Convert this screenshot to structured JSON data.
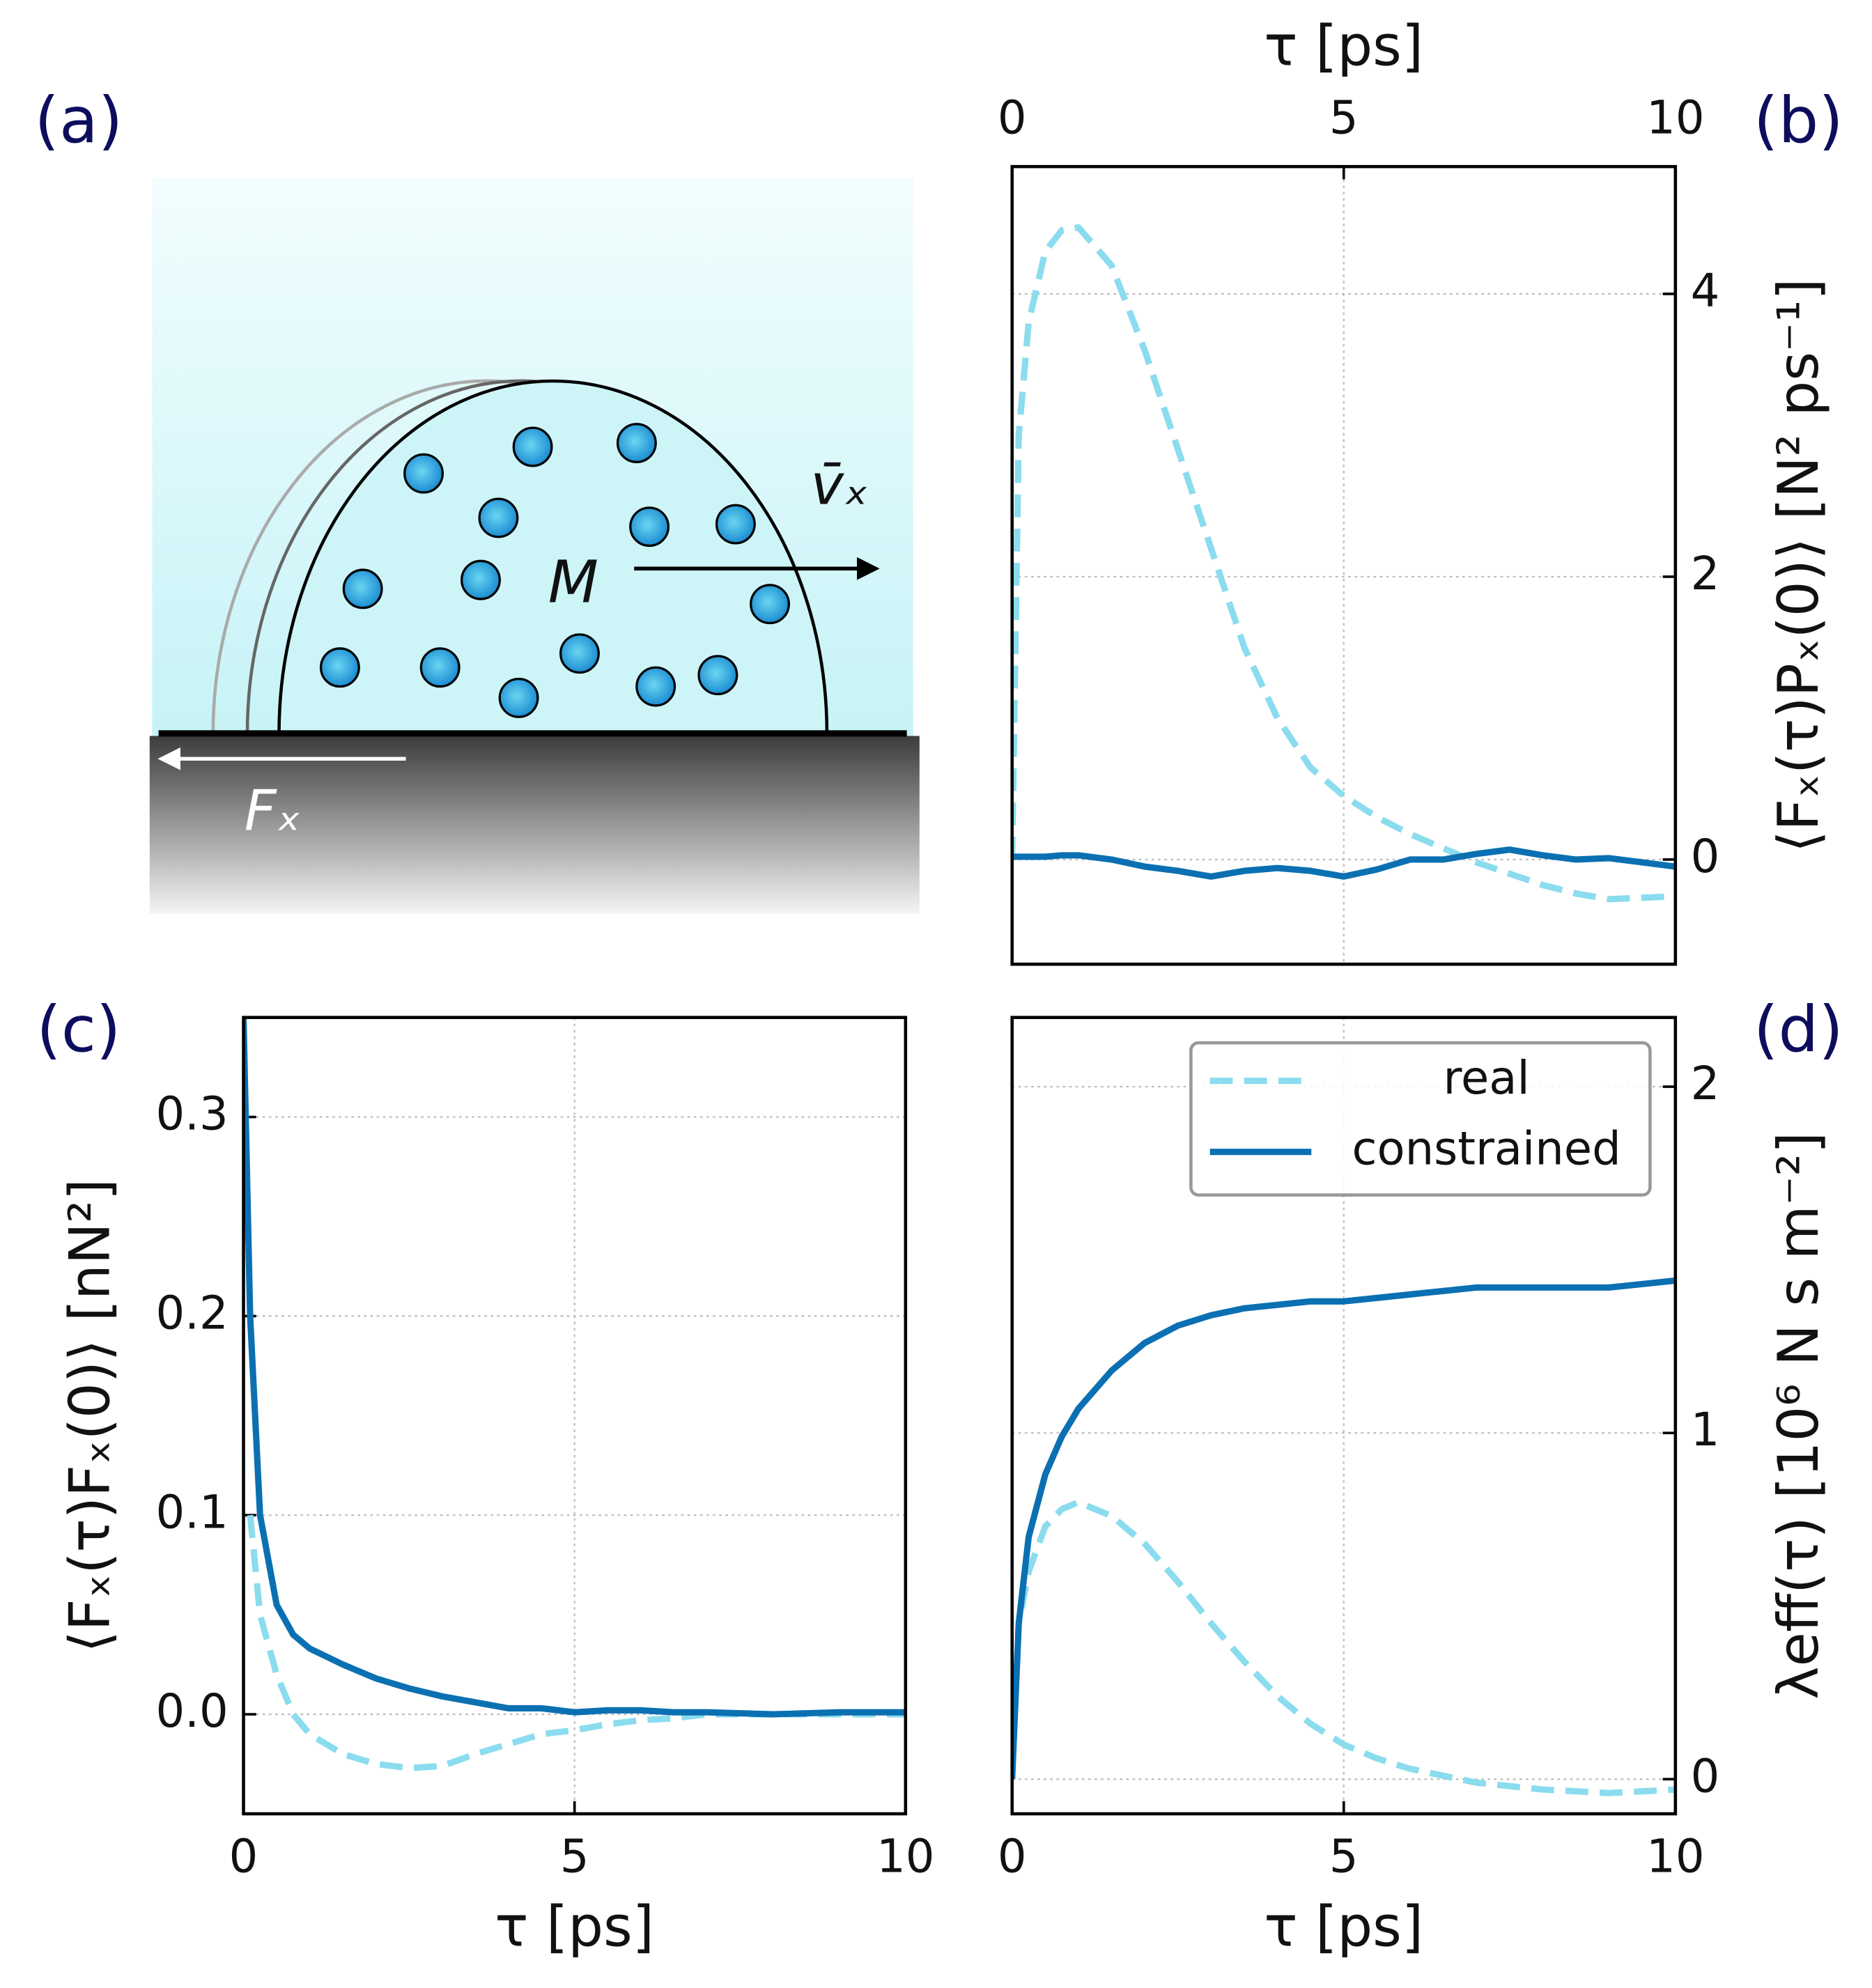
{
  "panel_labels": [
    "(a)",
    "(b)",
    "(c)",
    "(d)"
  ],
  "diagram": {
    "mass": "M",
    "velocity": "v̄ₓ",
    "force": "Fₓ"
  },
  "chart_data": [
    {
      "type": "line",
      "xlabel": "τ [ps]",
      "ylabel": "⟨Fₓ(τ)Pₓ(0)⟩ [N² ps⁻¹]",
      "xaxis_position": "top",
      "yaxis_position": "right",
      "x": [
        0,
        0.1,
        0.25,
        0.5,
        0.75,
        1,
        1.5,
        2,
        2.5,
        3,
        3.5,
        4,
        4.5,
        5,
        5.5,
        6,
        6.5,
        7,
        7.5,
        8,
        8.5,
        9,
        9.5,
        10
      ],
      "series": [
        {
          "color": "#8adcee",
          "style": "dashed",
          "values": [
            0,
            3.0,
            3.8,
            4.3,
            4.45,
            4.47,
            4.2,
            3.6,
            2.9,
            2.2,
            1.5,
            1.0,
            0.65,
            0.45,
            0.3,
            0.18,
            0.08,
            -0.02,
            -0.1,
            -0.18,
            -0.24,
            -0.28,
            -0.27,
            -0.26
          ]
        },
        {
          "color": "#0b70b2",
          "style": "solid",
          "values": [
            0.02,
            0.02,
            0.02,
            0.02,
            0.03,
            0.03,
            0.0,
            -0.05,
            -0.08,
            -0.12,
            -0.08,
            -0.06,
            -0.08,
            -0.12,
            -0.07,
            0.0,
            0.0,
            0.04,
            0.07,
            0.03,
            0.0,
            0.01,
            -0.02,
            -0.05
          ]
        }
      ],
      "xlim": [
        0,
        10
      ],
      "ylim": [
        -0.74,
        4.9
      ],
      "xticks": [
        0,
        5,
        10
      ],
      "yticks": [
        0,
        2,
        4
      ],
      "grid": true
    },
    {
      "type": "line",
      "xlabel": "τ [ps]",
      "ylabel": "⟨Fₓ(τ)Fₓ(0)⟩ [nN²]",
      "xaxis_position": "bottom",
      "yaxis_position": "left",
      "x": [
        0,
        0.1,
        0.25,
        0.5,
        0.75,
        1,
        1.5,
        2,
        2.5,
        3,
        3.5,
        4,
        4.5,
        5,
        5.5,
        6,
        6.5,
        7,
        8,
        9,
        10
      ],
      "series": [
        {
          "color": "#8adcee",
          "style": "dashed",
          "values": [
            null,
            0.1,
            0.05,
            0.02,
            0.0,
            -0.01,
            -0.02,
            -0.025,
            -0.027,
            -0.026,
            -0.02,
            -0.015,
            -0.01,
            -0.008,
            -0.005,
            -0.003,
            -0.002,
            0,
            0,
            0,
            0
          ]
        },
        {
          "color": "#0b70b2",
          "style": "solid",
          "values": [
            0.35,
            0.2,
            0.1,
            0.055,
            0.04,
            0.033,
            0.025,
            0.018,
            0.013,
            0.009,
            0.006,
            0.003,
            0.003,
            0.001,
            0.002,
            0.002,
            0.001,
            0.001,
            0.0,
            0.001,
            0.001
          ]
        }
      ],
      "xlim": [
        0,
        10
      ],
      "ylim": [
        -0.05,
        0.35
      ],
      "xticks": [
        0,
        5,
        10
      ],
      "yticks": [
        {
          "value": 0,
          "label": "0.0"
        },
        0.1,
        0.2,
        0.3
      ],
      "grid": true
    },
    {
      "type": "line",
      "xlabel": "τ [ps]",
      "ylabel": "λeff(τ) [10⁶ N s m⁻²]",
      "xaxis_position": "bottom",
      "yaxis_position": "right",
      "x": [
        0,
        0.1,
        0.25,
        0.5,
        0.75,
        1,
        1.5,
        2,
        2.5,
        3,
        3.5,
        4,
        4.5,
        5,
        5.5,
        6,
        6.5,
        7,
        8,
        9,
        10
      ],
      "series": [
        {
          "name": "real",
          "color": "#8adcee",
          "style": "dashed",
          "values": [
            0,
            0.45,
            0.6,
            0.73,
            0.78,
            0.8,
            0.76,
            0.68,
            0.57,
            0.45,
            0.34,
            0.24,
            0.16,
            0.1,
            0.06,
            0.03,
            0.01,
            -0.01,
            -0.03,
            -0.04,
            -0.03
          ]
        },
        {
          "name": "constrained",
          "color": "#0b70b2",
          "style": "solid",
          "values": [
            0,
            0.45,
            0.7,
            0.88,
            0.99,
            1.07,
            1.18,
            1.26,
            1.31,
            1.34,
            1.36,
            1.37,
            1.38,
            1.38,
            1.39,
            1.4,
            1.41,
            1.42,
            1.42,
            1.42,
            1.44
          ]
        }
      ],
      "xlim": [
        0,
        10
      ],
      "ylim": [
        -0.1,
        2.2
      ],
      "xticks": [
        0,
        5,
        10
      ],
      "yticks": [
        0,
        1,
        2
      ],
      "grid": true,
      "legend": "upper right"
    }
  ]
}
